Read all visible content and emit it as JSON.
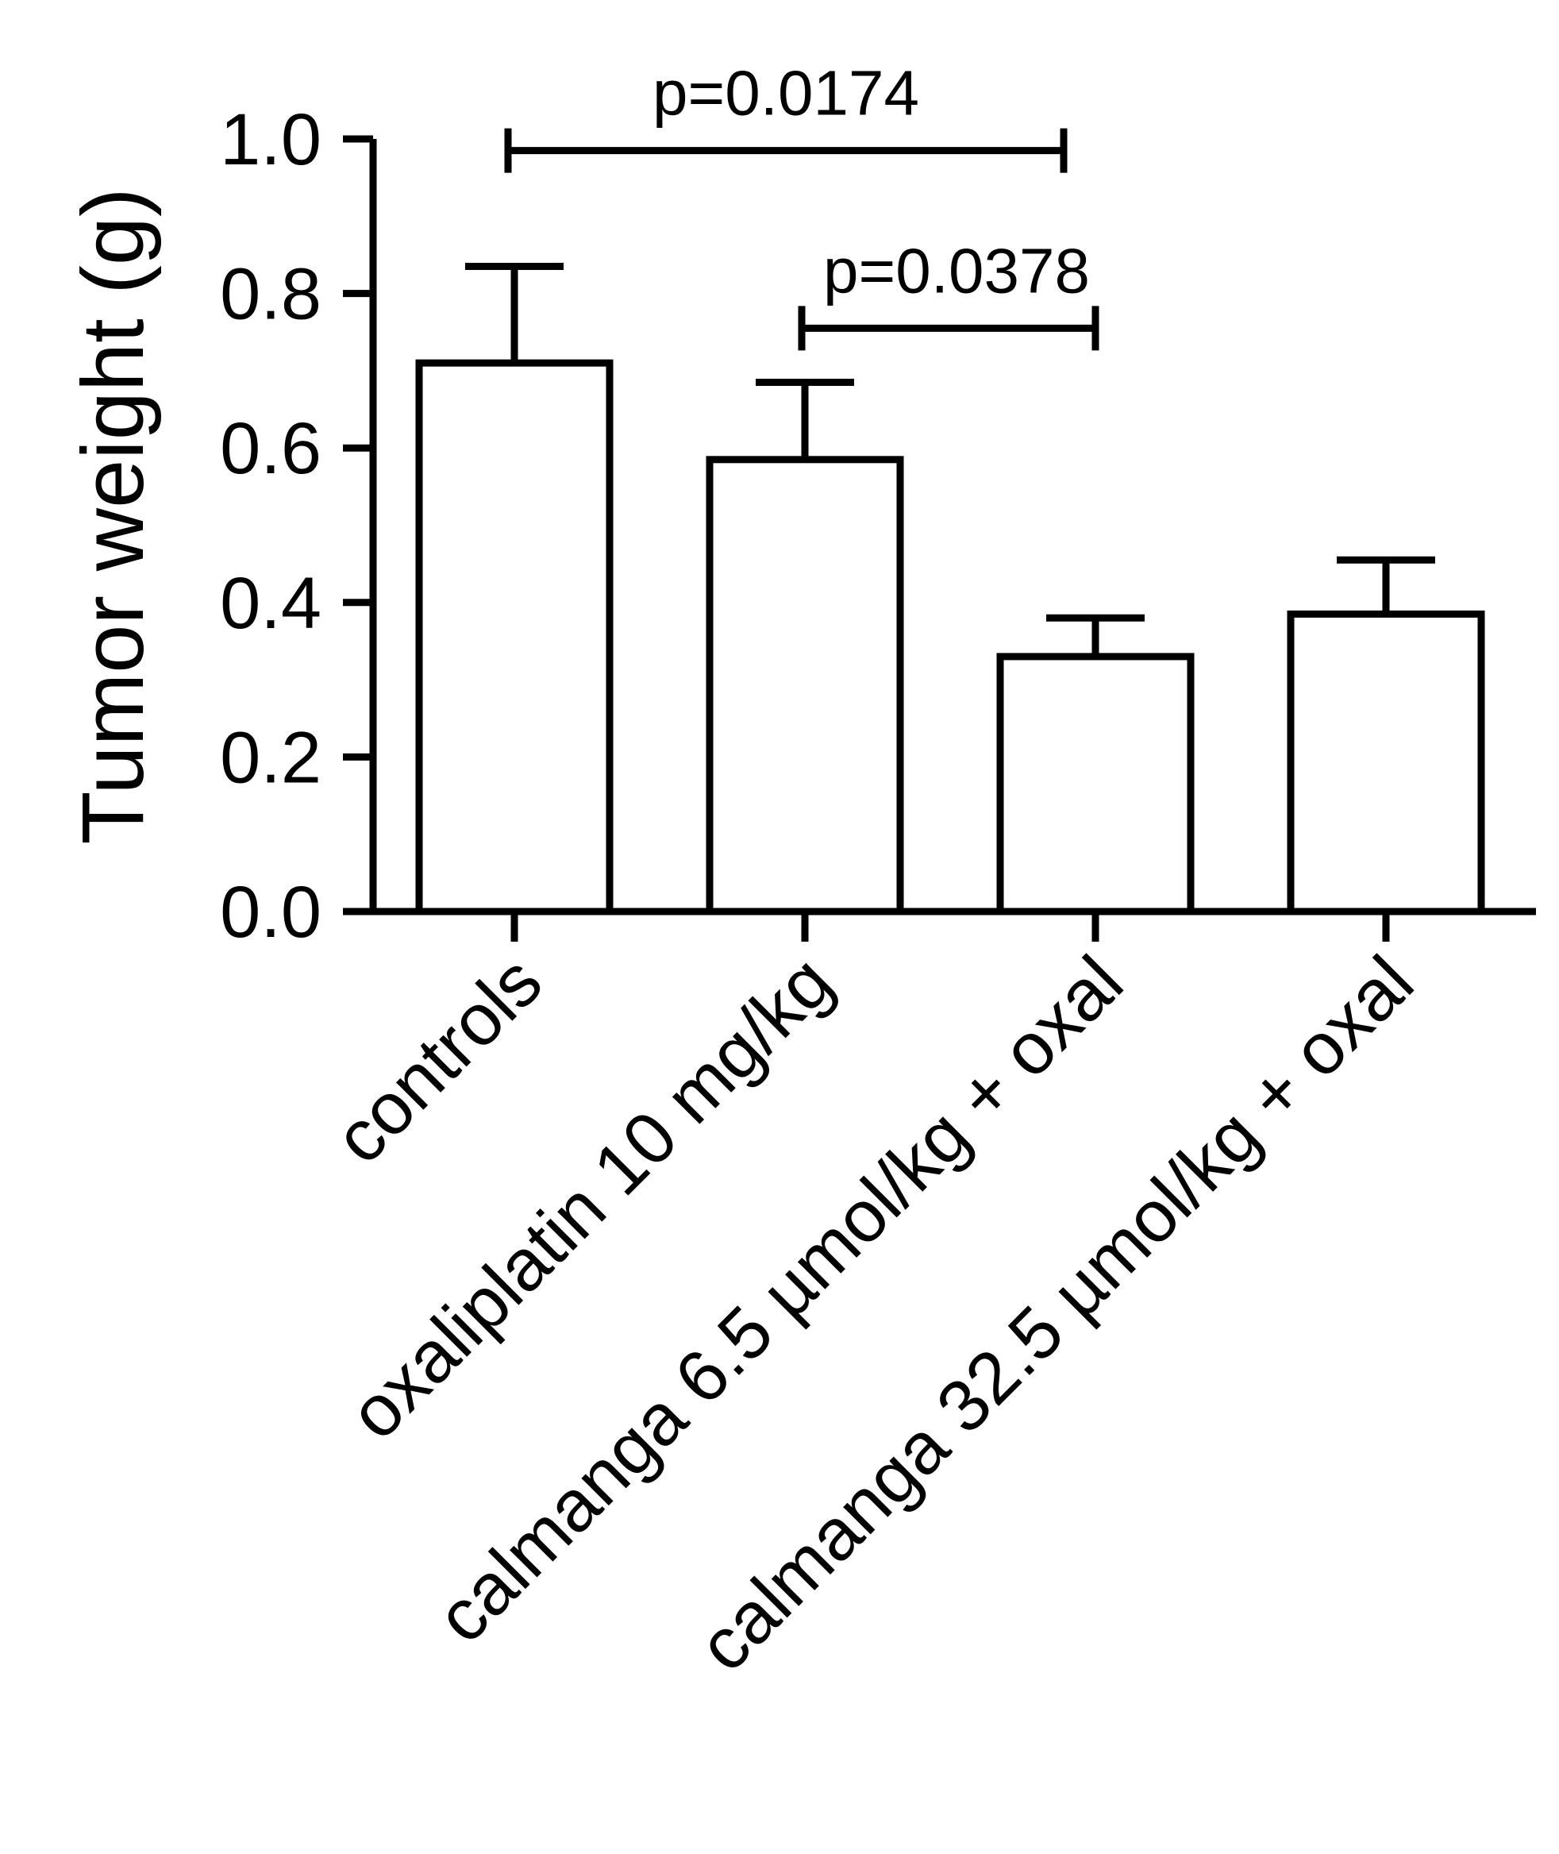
{
  "chart_data": {
    "type": "bar",
    "title": "",
    "xlabel": "",
    "ylabel": "Tumor weight (g)",
    "ylim": [
      0,
      1.0
    ],
    "yticks": [
      "0.0",
      "0.2",
      "0.4",
      "0.6",
      "0.8",
      "1.0"
    ],
    "categories": [
      "controls",
      "oxaliplatin 10 mg/kg",
      "calmanga 6.5 µmol/kg + oxal",
      "calmanga 32.5 µmol/kg + oxal"
    ],
    "values": [
      0.71,
      0.585,
      0.33,
      0.385
    ],
    "error_upper": [
      0.835,
      0.685,
      0.38,
      0.455
    ],
    "bar_fill": "#ffffff",
    "bar_stroke": "#000000",
    "grid": false,
    "annotations": [
      {
        "label": "p=0.0174",
        "from_category": 0,
        "to_category": 2
      },
      {
        "label": "p=0.0378",
        "from_category": 1,
        "to_category": 2
      }
    ]
  }
}
